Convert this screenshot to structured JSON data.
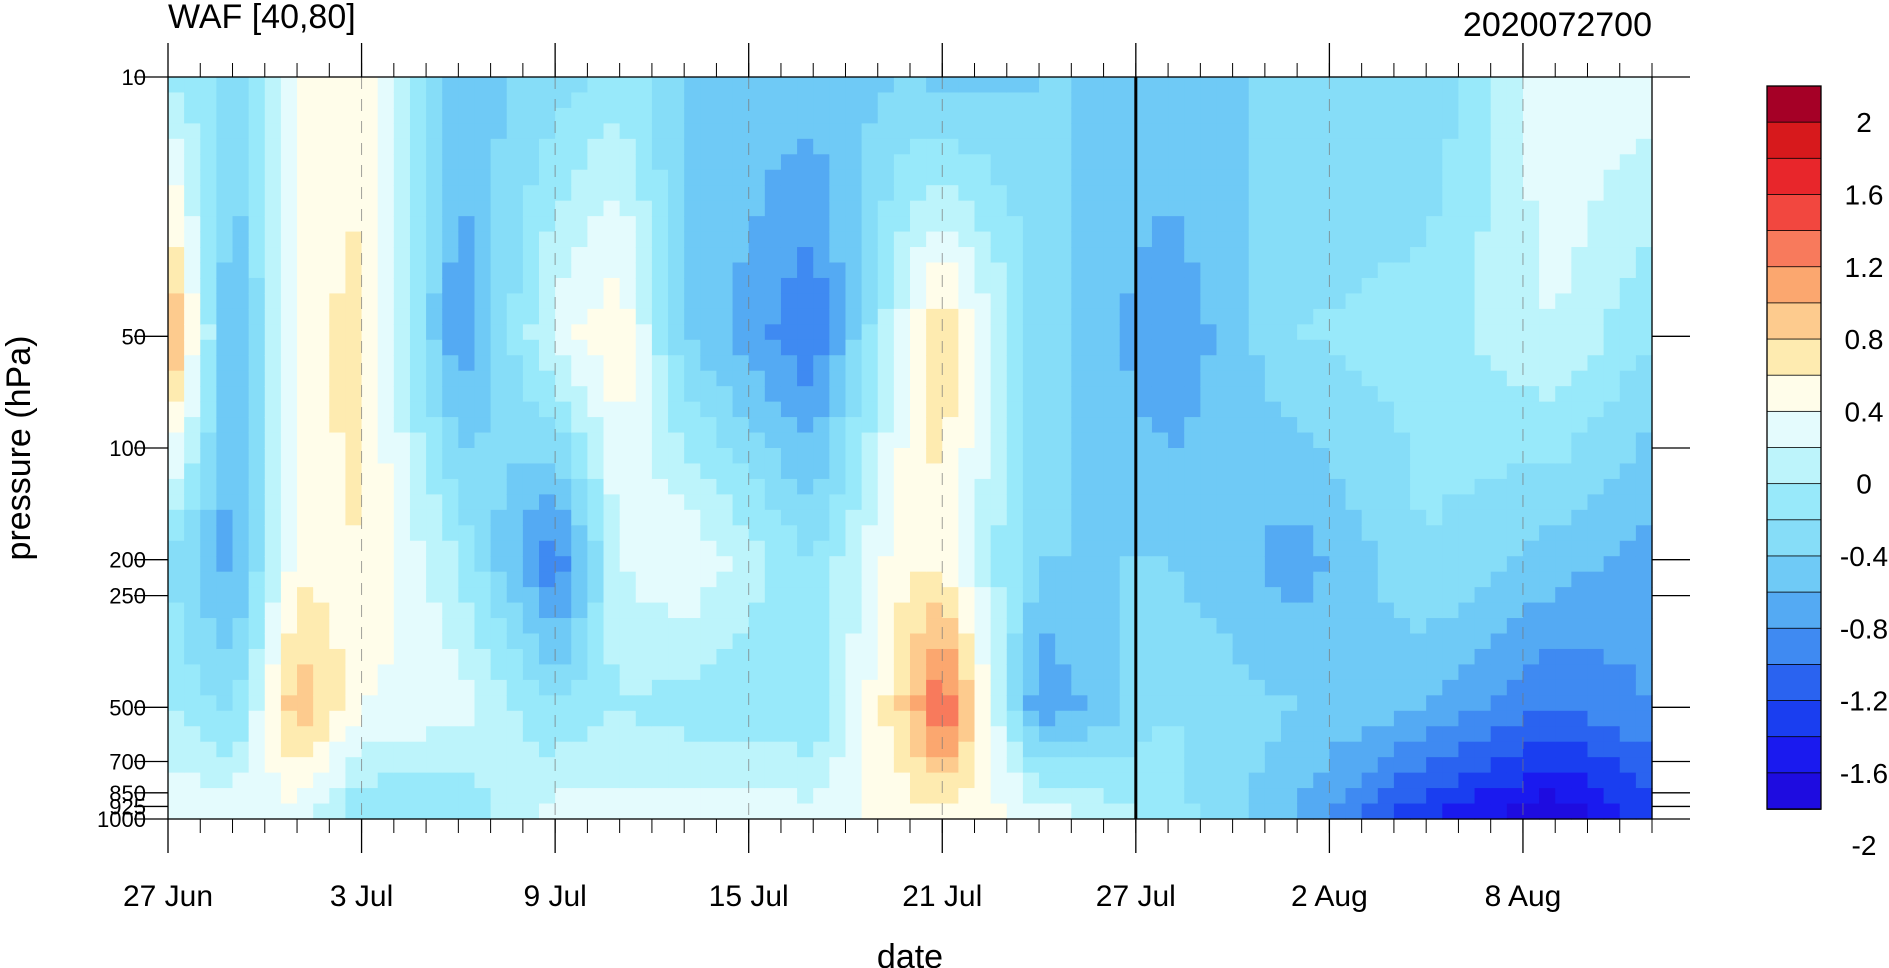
{
  "chart_data": {
    "type": "heatmap",
    "title_left": "WAF [40,80]",
    "title_right": "2020072700",
    "xlabel": "date",
    "ylabel": "pressure (hPa)",
    "y_scale": "log",
    "y_reversed": true,
    "grid": "vertical dashed lines at x ticks",
    "x_ticks": [
      {
        "label": "27 Jun",
        "date": "2020-06-27"
      },
      {
        "label": "3 Jul",
        "date": "2020-07-03"
      },
      {
        "label": "9 Jul",
        "date": "2020-07-09"
      },
      {
        "label": "15 Jul",
        "date": "2020-07-15"
      },
      {
        "label": "21 Jul",
        "date": "2020-07-21"
      },
      {
        "label": "27 Jul",
        "date": "2020-07-27"
      },
      {
        "label": "2 Aug",
        "date": "2020-08-02"
      },
      {
        "label": "8 Aug",
        "date": "2020-08-08"
      }
    ],
    "x_range": [
      "2020-06-27",
      "2020-08-12"
    ],
    "reference_line_date": "2020-07-27",
    "y_ticks": [
      "10",
      "50",
      "100",
      "200",
      "250",
      "500",
      "700",
      "850",
      "925",
      "1000"
    ],
    "y_range": [
      10,
      1000
    ],
    "colorbar": {
      "labels": [
        "2",
        "1.6",
        "1.2",
        "0.8",
        "0.4",
        "0",
        "-0.4",
        "-0.8",
        "-1.2",
        "-1.6",
        "-2"
      ],
      "colors": [
        "#a50026",
        "#d7191c",
        "#e8262b",
        "#f2473f",
        "#f87a5c",
        "#fba76f",
        "#fdcb8e",
        "#feebb0",
        "#fffdea",
        "#e4fbfd",
        "#bdf4fb",
        "#98e9fa",
        "#86ddf8",
        "#6fcaf6",
        "#54aaf3",
        "#3f8af2",
        "#2a63f0",
        "#1a3ef0",
        "#1a1aef",
        "#1e0ce0"
      ]
    },
    "series": [
      {
        "date": "2020-06-27",
        "values": [
          {
            "p": 10,
            "v": -0.2
          },
          {
            "p": 50,
            "v": 1.0
          },
          {
            "p": 200,
            "v": -0.4
          },
          {
            "p": 500,
            "v": -0.2
          },
          {
            "p": 1000,
            "v": 0.2
          }
        ]
      },
      {
        "date": "2020-06-29",
        "values": [
          {
            "p": 10,
            "v": -0.5
          },
          {
            "p": 50,
            "v": -0.9
          },
          {
            "p": 200,
            "v": -0.9
          },
          {
            "p": 500,
            "v": -0.5
          },
          {
            "p": 1000,
            "v": 0.2
          }
        ]
      },
      {
        "date": "2020-07-01",
        "values": [
          {
            "p": 10,
            "v": 0.2
          },
          {
            "p": 50,
            "v": 0.3
          },
          {
            "p": 200,
            "v": 0.3
          },
          {
            "p": 500,
            "v": 0.8
          },
          {
            "p": 1000,
            "v": 0.1
          }
        ]
      },
      {
        "date": "2020-07-03",
        "values": [
          {
            "p": 10,
            "v": 0.3
          },
          {
            "p": 50,
            "v": 0.5
          },
          {
            "p": 200,
            "v": 0.4
          },
          {
            "p": 500,
            "v": 0.2
          },
          {
            "p": 1000,
            "v": -0.4
          }
        ]
      },
      {
        "date": "2020-07-06",
        "values": [
          {
            "p": 10,
            "v": -0.7
          },
          {
            "p": 50,
            "v": -1.0
          },
          {
            "p": 200,
            "v": -0.2
          },
          {
            "p": 500,
            "v": 0.1
          },
          {
            "p": 1000,
            "v": -0.4
          }
        ]
      },
      {
        "date": "2020-07-09",
        "values": [
          {
            "p": 10,
            "v": -0.5
          },
          {
            "p": 50,
            "v": 0.1
          },
          {
            "p": 200,
            "v": -1.2
          },
          {
            "p": 500,
            "v": -0.4
          },
          {
            "p": 1000,
            "v": 0.1
          }
        ]
      },
      {
        "date": "2020-07-11",
        "values": [
          {
            "p": 10,
            "v": -0.3
          },
          {
            "p": 50,
            "v": 0.4
          },
          {
            "p": 200,
            "v": 0.0
          },
          {
            "p": 500,
            "v": -0.2
          },
          {
            "p": 1000,
            "v": 0.1
          }
        ]
      },
      {
        "date": "2020-07-13",
        "values": [
          {
            "p": 10,
            "v": -0.6
          },
          {
            "p": 50,
            "v": -0.6
          },
          {
            "p": 200,
            "v": 0.2
          },
          {
            "p": 500,
            "v": -0.3
          },
          {
            "p": 1000,
            "v": 0.1
          }
        ]
      },
      {
        "date": "2020-07-17",
        "values": [
          {
            "p": 10,
            "v": -0.7
          },
          {
            "p": 50,
            "v": -1.2
          },
          {
            "p": 200,
            "v": -0.4
          },
          {
            "p": 500,
            "v": -0.4
          },
          {
            "p": 1000,
            "v": 0.1
          }
        ]
      },
      {
        "date": "2020-07-20",
        "values": [
          {
            "p": 10,
            "v": -0.6
          },
          {
            "p": 50,
            "v": 0.2
          },
          {
            "p": 200,
            "v": 0.4
          },
          {
            "p": 500,
            "v": 0.7
          },
          {
            "p": 1000,
            "v": 0.3
          }
        ]
      },
      {
        "date": "2020-07-21",
        "values": [
          {
            "p": 10,
            "v": -0.7
          },
          {
            "p": 50,
            "v": 0.6
          },
          {
            "p": 200,
            "v": 0.3
          },
          {
            "p": 500,
            "v": 1.3
          },
          {
            "p": 1000,
            "v": 0.3
          }
        ]
      },
      {
        "date": "2020-07-24",
        "values": [
          {
            "p": 10,
            "v": -0.6
          },
          {
            "p": 50,
            "v": -0.5
          },
          {
            "p": 200,
            "v": -0.6
          },
          {
            "p": 500,
            "v": -1.0
          },
          {
            "p": 1000,
            "v": 0.2
          }
        ]
      },
      {
        "date": "2020-07-28",
        "values": [
          {
            "p": 10,
            "v": -0.6
          },
          {
            "p": 50,
            "v": -1.0
          },
          {
            "p": 200,
            "v": -0.6
          },
          {
            "p": 500,
            "v": -0.4
          },
          {
            "p": 1000,
            "v": -0.3
          }
        ]
      },
      {
        "date": "2020-08-01",
        "values": [
          {
            "p": 10,
            "v": -0.6
          },
          {
            "p": 50,
            "v": -0.4
          },
          {
            "p": 200,
            "v": -0.9
          },
          {
            "p": 500,
            "v": -0.6
          },
          {
            "p": 1000,
            "v": -0.8
          }
        ]
      },
      {
        "date": "2020-08-05",
        "values": [
          {
            "p": 10,
            "v": -0.6
          },
          {
            "p": 50,
            "v": -0.3
          },
          {
            "p": 200,
            "v": -0.4
          },
          {
            "p": 500,
            "v": -0.8
          },
          {
            "p": 1000,
            "v": -1.6
          }
        ]
      },
      {
        "date": "2020-08-09",
        "values": [
          {
            "p": 10,
            "v": 0.2
          },
          {
            "p": 50,
            "v": 0.0
          },
          {
            "p": 200,
            "v": -0.7
          },
          {
            "p": 500,
            "v": -1.2
          },
          {
            "p": 1000,
            "v": -2.0
          }
        ]
      },
      {
        "date": "2020-08-12",
        "values": [
          {
            "p": 10,
            "v": 0.1
          },
          {
            "p": 50,
            "v": -0.4
          },
          {
            "p": 200,
            "v": -0.9
          },
          {
            "p": 500,
            "v": -1.0
          },
          {
            "p": 1000,
            "v": -1.5
          }
        ]
      }
    ]
  }
}
